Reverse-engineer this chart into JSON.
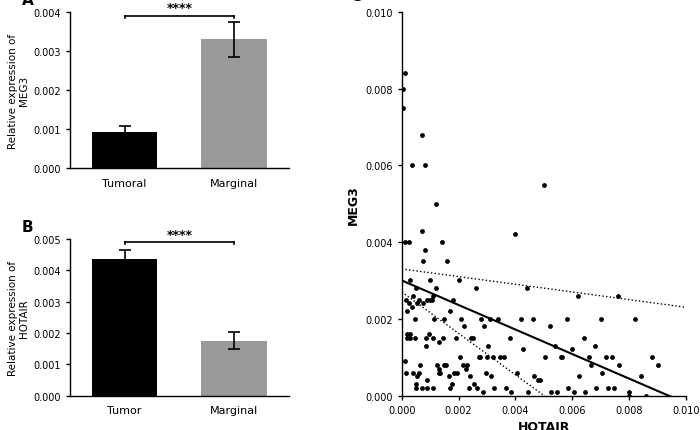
{
  "panelA": {
    "categories": [
      "Tumoral",
      "Marginal"
    ],
    "values": [
      0.00093,
      0.0033
    ],
    "errors": [
      0.00015,
      0.00045
    ],
    "colors": [
      "#000000",
      "#999999"
    ],
    "ylabel": "Relative expression of\nMEG3",
    "ylim": [
      0,
      0.004
    ],
    "yticks": [
      0.0,
      0.001,
      0.002,
      0.003,
      0.004
    ],
    "sig_text": "****",
    "label": "A"
  },
  "panelB": {
    "categories": [
      "Tumor",
      "Marginal"
    ],
    "values": [
      0.00435,
      0.00175
    ],
    "errors": [
      0.0003,
      0.00028
    ],
    "colors": [
      "#000000",
      "#999999"
    ],
    "ylabel": "Relative expression of\nHOTAIR",
    "ylim": [
      0,
      0.005
    ],
    "yticks": [
      0.0,
      0.001,
      0.002,
      0.003,
      0.004,
      0.005
    ],
    "sig_text": "****",
    "label": "B"
  },
  "panelC": {
    "xlabel": "HOTAIR",
    "ylabel": "MEG3",
    "xlim": [
      0,
      0.01
    ],
    "ylim": [
      0,
      0.01
    ],
    "xticks": [
      0.0,
      0.002,
      0.004,
      0.006,
      0.008,
      0.01
    ],
    "yticks": [
      0.0,
      0.002,
      0.004,
      0.006,
      0.008,
      0.01
    ],
    "label": "C",
    "regression_slope": -0.32,
    "regression_intercept": 0.003,
    "ci_upper_slope": -0.1,
    "ci_upper_intercept": 0.0033,
    "ci_lower_slope": -0.54,
    "ci_lower_intercept": 0.0027
  },
  "scatter_x": [
    5e-05,
    0.0001,
    0.00015,
    0.0002,
    0.00025,
    0.0003,
    0.00035,
    0.0004,
    0.00045,
    0.0005,
    0.00055,
    0.0006,
    0.0007,
    0.00075,
    0.0008,
    0.00085,
    0.0009,
    0.001,
    0.0011,
    0.0012,
    0.0013,
    0.0014,
    0.0015,
    0.0016,
    0.0017,
    0.0018,
    0.0019,
    0.002,
    0.0021,
    0.0022,
    0.0023,
    0.0024,
    0.0025,
    0.0026,
    0.0027,
    0.0028,
    0.0029,
    0.003,
    0.0031,
    0.0032,
    0.0034,
    0.0036,
    0.0038,
    0.004,
    0.0042,
    0.0044,
    0.0046,
    0.0048,
    0.005,
    0.0052,
    0.0054,
    0.0056,
    0.0058,
    0.006,
    0.0062,
    0.0064,
    0.0066,
    0.0068,
    0.007,
    0.0072,
    0.0074,
    0.0076,
    0.008,
    0.0082,
    0.0084,
    0.0086,
    0.0088,
    0.009,
    5e-05,
    0.0001,
    0.0002,
    0.0003,
    0.0004,
    0.0005,
    0.0006,
    0.0007,
    0.0008,
    0.0009,
    0.001,
    0.0011,
    0.0012,
    0.0013,
    0.00015,
    0.00025,
    0.00035,
    0.00045,
    0.00055,
    0.00065,
    0.00075,
    0.00085,
    0.00095,
    0.00105,
    0.00115,
    0.00125,
    0.00135,
    0.00145,
    0.00155,
    0.00165,
    0.00175,
    0.00185,
    0.00195,
    0.00205,
    0.00215,
    0.00225,
    0.00235,
    0.00245,
    0.00255,
    0.00265,
    0.00275,
    0.00285,
    0.00295,
    0.00305,
    0.00315,
    0.00325,
    0.00345,
    0.00365,
    0.00385,
    0.00405,
    0.00425,
    0.00445,
    0.00465,
    0.00485,
    0.00505,
    0.00525,
    0.00545,
    0.00565,
    0.00585,
    0.00605,
    0.00625,
    0.00645,
    0.00665,
    0.00685,
    0.00705,
    0.00725,
    0.00745,
    0.00765,
    0.008,
    0.0001,
    0.0002,
    0.0003,
    0.0005,
    0.0007,
    0.0009,
    0.0011,
    0.0013,
    0.0015,
    0.0017
  ],
  "scatter_y": [
    0.008,
    0.0009,
    0.0025,
    0.0022,
    0.0024,
    0.003,
    0.0023,
    0.0026,
    0.002,
    0.0028,
    0.0024,
    0.0006,
    0.0068,
    0.0024,
    0.0038,
    0.0015,
    0.0025,
    0.003,
    0.0026,
    0.005,
    0.0014,
    0.004,
    0.002,
    0.0035,
    0.0022,
    0.0025,
    0.0015,
    0.003,
    0.002,
    0.0018,
    0.0008,
    0.0005,
    0.0015,
    0.0028,
    0.001,
    0.002,
    0.0018,
    0.001,
    0.002,
    0.001,
    0.002,
    0.001,
    0.0015,
    0.0042,
    0.002,
    0.0028,
    0.002,
    0.0004,
    0.0055,
    0.0018,
    0.0013,
    0.001,
    0.002,
    0.0012,
    0.0026,
    0.0015,
    0.001,
    0.0013,
    0.002,
    0.001,
    0.001,
    0.0026,
    0.0,
    0.002,
    0.0005,
    0.0,
    0.001,
    0.0008,
    0.0075,
    0.0084,
    0.0015,
    0.0015,
    0.0006,
    0.0003,
    0.0025,
    0.0043,
    0.006,
    0.0002,
    0.0025,
    0.0015,
    0.0028,
    0.0007,
    0.0006,
    0.004,
    0.006,
    0.0015,
    0.0005,
    0.0008,
    0.0035,
    0.0013,
    0.0016,
    0.0025,
    0.002,
    0.0008,
    0.0006,
    0.0015,
    0.0008,
    0.0005,
    0.0003,
    0.0006,
    0.0006,
    0.001,
    0.0008,
    0.0007,
    0.0002,
    0.0015,
    0.0003,
    0.0002,
    0.001,
    0.0001,
    0.0006,
    0.0013,
    0.0005,
    0.0002,
    0.001,
    0.0002,
    0.0001,
    0.0006,
    0.0012,
    0.0001,
    0.0005,
    0.0004,
    0.001,
    0.0001,
    0.0001,
    0.001,
    0.0002,
    0.0001,
    0.0005,
    0.0001,
    0.0008,
    0.0002,
    0.0006,
    0.0002,
    0.0002,
    0.0008,
    0.0001,
    0.004,
    0.0016,
    0.0016,
    0.0002,
    0.0002,
    0.0004,
    0.0002,
    0.0006,
    0.0008,
    0.0002
  ]
}
